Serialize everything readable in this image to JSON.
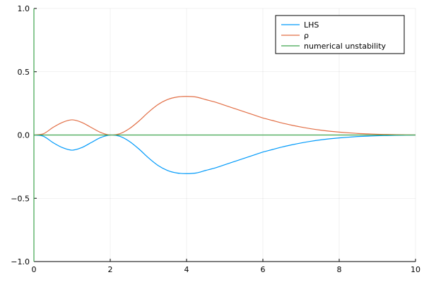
{
  "chart_data": {
    "type": "line",
    "title": "",
    "xlabel": "",
    "ylabel": "",
    "xlim": [
      0,
      10
    ],
    "ylim": [
      -1.0,
      1.0
    ],
    "x_ticks": [
      0,
      2,
      4,
      6,
      8,
      10
    ],
    "x_tick_labels": [
      "0",
      "2",
      "4",
      "6",
      "8",
      "10"
    ],
    "y_ticks": [
      -1.0,
      -0.5,
      0.0,
      0.5,
      1.0
    ],
    "y_tick_labels": [
      "−1.0",
      "−0.5",
      "0.0",
      "0.5",
      "1.0"
    ],
    "grid": true,
    "legend_position": "top-right",
    "x": [
      0,
      0.25,
      0.5,
      0.75,
      1.0,
      1.25,
      1.5,
      1.75,
      2.0,
      2.25,
      2.5,
      2.75,
      3.0,
      3.25,
      3.5,
      3.75,
      4.0,
      4.25,
      4.5,
      4.75,
      5.0,
      5.25,
      5.5,
      5.75,
      6.0,
      6.25,
      6.5,
      6.75,
      7.0,
      7.25,
      7.5,
      7.75,
      8.0,
      8.25,
      8.5,
      8.75,
      9.0,
      9.25,
      9.5,
      9.75,
      10.0
    ],
    "series": [
      {
        "name": "LHS",
        "color": "#009AFA",
        "values": [
          0,
          -0.01,
          -0.06,
          -0.1,
          -0.12,
          -0.1,
          -0.06,
          -0.02,
          0.0,
          -0.01,
          -0.05,
          -0.11,
          -0.18,
          -0.24,
          -0.28,
          -0.3,
          -0.305,
          -0.3,
          -0.28,
          -0.26,
          -0.235,
          -0.21,
          -0.185,
          -0.16,
          -0.135,
          -0.115,
          -0.095,
          -0.078,
          -0.063,
          -0.05,
          -0.039,
          -0.03,
          -0.023,
          -0.017,
          -0.012,
          -0.009,
          -0.006,
          -0.004,
          -0.002,
          -0.001,
          0.0
        ]
      },
      {
        "name": "ρ",
        "color": "#E26F46",
        "values": [
          0,
          0.01,
          0.06,
          0.1,
          0.12,
          0.1,
          0.06,
          0.02,
          0.0,
          0.01,
          0.05,
          0.11,
          0.18,
          0.24,
          0.28,
          0.3,
          0.305,
          0.3,
          0.28,
          0.26,
          0.235,
          0.21,
          0.185,
          0.16,
          0.135,
          0.115,
          0.095,
          0.078,
          0.063,
          0.05,
          0.039,
          0.03,
          0.023,
          0.017,
          0.012,
          0.009,
          0.006,
          0.004,
          0.002,
          0.001,
          0.0
        ]
      },
      {
        "name": "numerical unstability",
        "color": "#3DA44D",
        "values": [
          0,
          0,
          0,
          0,
          0,
          0,
          0,
          0,
          0,
          0,
          0,
          0,
          0,
          0,
          0,
          0,
          0,
          0,
          0,
          0,
          0,
          0,
          0,
          0,
          0,
          0,
          0,
          0,
          0,
          0,
          0,
          0,
          0,
          0,
          0,
          0,
          0,
          0,
          0,
          0,
          0
        ]
      }
    ],
    "extra_segments": [
      {
        "series_index": 2,
        "x": [
          0,
          0
        ],
        "y": [
          -1.0,
          1.0
        ]
      }
    ]
  }
}
